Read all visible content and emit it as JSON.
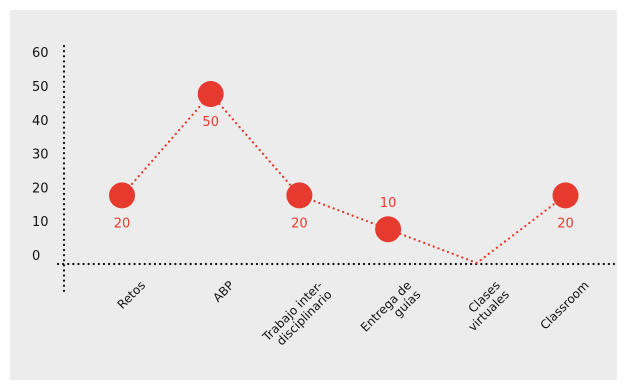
{
  "chart_data": {
    "type": "line",
    "categories": [
      "Retos",
      "ABP",
      "Trabajo inter-\ndisciplinario",
      "Entrega de\nguías",
      "Clases\nvirtuales",
      "Classroom"
    ],
    "series": [
      {
        "values": [
          20,
          50,
          20,
          10,
          0,
          20
        ]
      }
    ],
    "data_labels": [
      "20",
      "50",
      "20",
      "10",
      "",
      "20"
    ],
    "yticks": [
      "0",
      "10",
      "20",
      "30",
      "40",
      "50",
      "60"
    ],
    "ylim": [
      0,
      60
    ],
    "grid": false,
    "colors": {
      "series": "#e63a2e",
      "axis": "#111111",
      "background": "#ececec"
    }
  }
}
